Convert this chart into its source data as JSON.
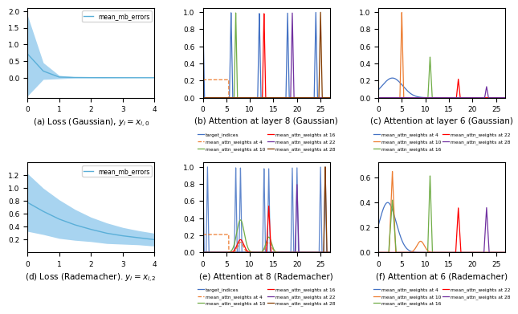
{
  "fig_width": 6.4,
  "fig_height": 3.81,
  "loss_gauss": {
    "x": [
      0,
      0.5,
      1,
      1.5,
      2,
      2.5,
      3,
      3.5,
      4
    ],
    "mean": [
      0.72,
      0.2,
      0.02,
      0.008,
      0.004,
      0.002,
      0.001,
      0.0005,
      0.0002
    ],
    "upper": [
      1.88,
      0.45,
      0.07,
      0.025,
      0.012,
      0.006,
      0.003,
      0.0015,
      0.0007
    ],
    "lower": [
      -0.55,
      -0.05,
      -0.03,
      -0.009,
      -0.004,
      -0.002,
      -0.001,
      -0.0005,
      -0.0002
    ],
    "color": "#a8d4f0",
    "line_color": "#5aafd8",
    "ylim": [
      -0.6,
      2.1
    ],
    "yticks": [
      0.0,
      0.5,
      1.0,
      1.5,
      2.0
    ]
  },
  "loss_rademacher": {
    "x": [
      0,
      0.5,
      1,
      1.5,
      2,
      2.5,
      3,
      3.5,
      4
    ],
    "mean": [
      0.78,
      0.64,
      0.52,
      0.43,
      0.36,
      0.3,
      0.26,
      0.23,
      0.2
    ],
    "upper": [
      1.23,
      1.0,
      0.82,
      0.67,
      0.55,
      0.46,
      0.39,
      0.34,
      0.3
    ],
    "lower": [
      0.33,
      0.28,
      0.22,
      0.19,
      0.17,
      0.14,
      0.13,
      0.12,
      0.1
    ],
    "color": "#a8d4f0",
    "line_color": "#5aafd8",
    "ylim": [
      0.0,
      1.4
    ],
    "yticks": [
      0.2,
      0.4,
      0.6,
      0.8,
      1.0,
      1.2
    ]
  },
  "attn_x_ticks": [
    0,
    5,
    10,
    15,
    20,
    25
  ],
  "legend_colors_b": {
    "target_indices": "#4472c4",
    "mean_attn_weights at 4": "#ed7d31",
    "mean_attn_weights at 10": "#70ad47",
    "mean_attn_weights at 16": "#ff0000",
    "mean_attn_weights at 22": "#7030a0",
    "mean_attn_weights at 28": "#833c00"
  },
  "legend_colors_c": {
    "mean_attn_weights at 4": "#4472c4",
    "mean_attn_weights at 10": "#ed7d31",
    "mean_attn_weights at 16": "#70ad47",
    "mean_attn_weights at 22": "#ff0000",
    "mean_attn_weights at 28": "#7030a0"
  },
  "captions": {
    "a": "(a) Loss (Gaussian), $y_i = x_{i,0}$",
    "b": "(b) Attention at layer 8 (Gaussian)",
    "c": "(c) Attention at layer 6 (Gaussian)",
    "d": "(d) Loss (Rademacher). $y_i = x_{i,2}$",
    "e": "(e) Attention at 8 (Rademacher)",
    "f": "(f) Attention at 6 (Rademacher)"
  }
}
